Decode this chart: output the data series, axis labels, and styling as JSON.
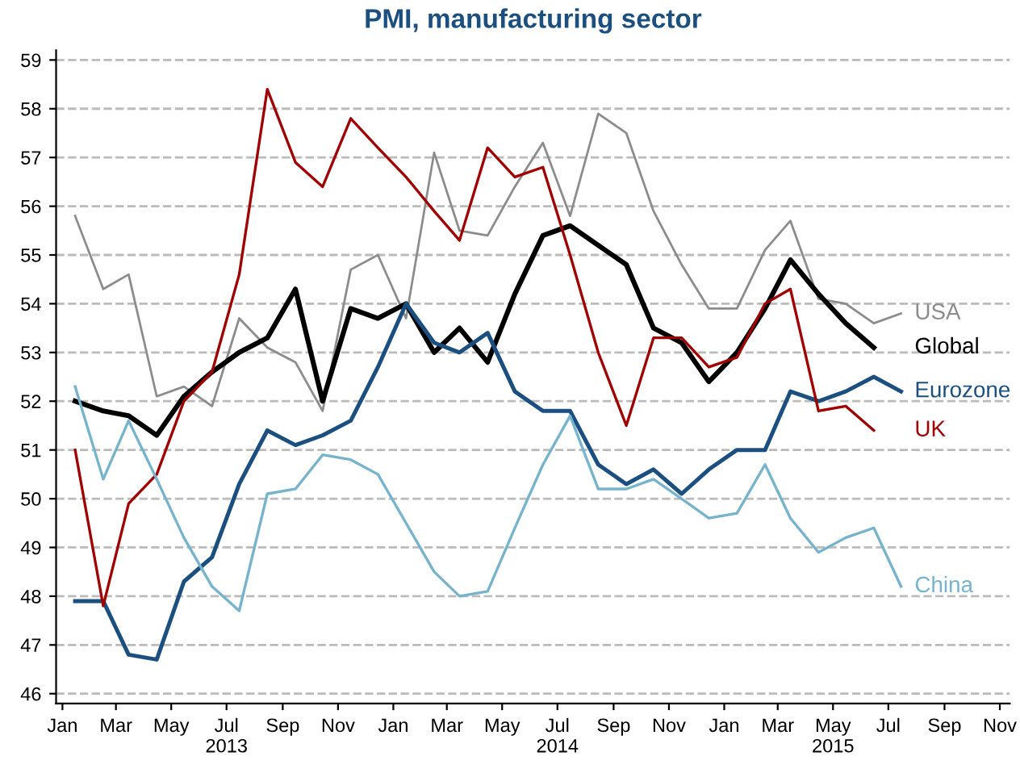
{
  "chart_data": {
    "type": "line",
    "title": "PMI, manufacturing sector",
    "x": [
      "2013-01-15",
      "2013-02-15",
      "2013-03-15",
      "2013-04-15",
      "2013-05-15",
      "2013-06-15",
      "2013-07-15",
      "2013-08-15",
      "2013-09-15",
      "2013-10-15",
      "2013-11-15",
      "2013-12-15",
      "2014-01-15",
      "2014-02-15",
      "2014-03-15",
      "2014-04-15",
      "2014-05-15",
      "2014-06-15",
      "2014-07-15",
      "2014-08-15",
      "2014-09-15",
      "2014-10-15",
      "2014-11-15",
      "2014-12-15",
      "2015-01-15",
      "2015-02-15",
      "2015-03-15",
      "2015-04-15",
      "2015-05-15",
      "2015-06-15",
      "2015-07-15"
    ],
    "series": [
      {
        "name": "USA",
        "color": "#8c8c8c",
        "values": [
          55.8,
          54.3,
          54.6,
          52.1,
          52.3,
          51.9,
          53.7,
          53.1,
          52.8,
          51.8,
          54.7,
          55.0,
          53.7,
          57.1,
          55.5,
          55.4,
          56.4,
          57.3,
          55.8,
          57.9,
          57.5,
          55.9,
          54.8,
          53.9,
          53.9,
          55.1,
          55.7,
          54.1,
          54.0,
          53.6,
          53.8
        ]
      },
      {
        "name": "Global",
        "color": "#000000",
        "values": [
          52.0,
          51.8,
          51.7,
          51.3,
          52.1,
          52.6,
          53.0,
          53.3,
          54.3,
          52.0,
          53.9,
          53.7,
          54.0,
          53.0,
          53.5,
          52.8,
          54.2,
          55.4,
          55.6,
          55.2,
          54.8,
          53.5,
          53.2,
          52.4,
          53.0,
          53.9,
          54.9,
          54.2,
          53.6,
          53.1,
          null
        ]
      },
      {
        "name": "Eurozone",
        "color": "#1b4f7f",
        "values": [
          47.9,
          47.9,
          46.8,
          46.7,
          48.3,
          48.8,
          50.3,
          51.4,
          51.1,
          51.3,
          51.6,
          52.7,
          54.0,
          53.2,
          53.0,
          53.4,
          52.2,
          51.8,
          51.8,
          50.7,
          50.3,
          50.6,
          50.1,
          50.6,
          51.0,
          51.0,
          52.2,
          52.0,
          52.2,
          52.5,
          52.2
        ]
      },
      {
        "name": "UK",
        "color": "#a00000",
        "values": [
          51.0,
          47.8,
          49.9,
          50.5,
          52.0,
          52.6,
          54.6,
          58.4,
          56.9,
          56.4,
          57.8,
          57.2,
          56.6,
          55.9,
          55.3,
          57.2,
          56.6,
          56.8,
          55.0,
          53.0,
          51.5,
          53.3,
          53.3,
          52.7,
          52.9,
          54.0,
          54.3,
          51.8,
          51.9,
          51.4,
          null
        ]
      },
      {
        "name": "China",
        "color": "#76b3cc",
        "values": [
          52.3,
          50.4,
          51.6,
          50.4,
          49.2,
          48.2,
          47.7,
          50.1,
          50.2,
          50.9,
          50.8,
          50.5,
          49.5,
          48.5,
          48.0,
          48.1,
          49.4,
          50.7,
          51.7,
          50.2,
          50.2,
          50.4,
          50.0,
          49.6,
          49.7,
          50.7,
          49.6,
          48.9,
          49.2,
          49.4,
          48.2
        ]
      }
    ],
    "xlim": [
      "2012-12-25",
      "2015-11-12"
    ],
    "xticks": [
      {
        "value": "2013-01-01",
        "label": "Jan"
      },
      {
        "value": "2013-03-01",
        "label": "Mar"
      },
      {
        "value": "2013-05-01",
        "label": "May"
      },
      {
        "value": "2013-07-01",
        "label": "Jul\n2013"
      },
      {
        "value": "2013-09-01",
        "label": "Sep"
      },
      {
        "value": "2013-11-01",
        "label": "Nov"
      },
      {
        "value": "2014-01-01",
        "label": "Jan"
      },
      {
        "value": "2014-03-01",
        "label": "Mar"
      },
      {
        "value": "2014-05-01",
        "label": "May"
      },
      {
        "value": "2014-07-01",
        "label": "Jul\n2014"
      },
      {
        "value": "2014-09-01",
        "label": "Sep"
      },
      {
        "value": "2014-11-01",
        "label": "Nov"
      },
      {
        "value": "2015-01-01",
        "label": "Jan"
      },
      {
        "value": "2015-03-01",
        "label": "Mar"
      },
      {
        "value": "2015-05-01",
        "label": "May\n2015"
      },
      {
        "value": "2015-07-01",
        "label": "Jul"
      },
      {
        "value": "2015-09-01",
        "label": "Sep"
      },
      {
        "value": "2015-11-01",
        "label": "Nov"
      }
    ],
    "ylim": [
      45.8,
      59.2
    ],
    "yticks": [
      46,
      47,
      48,
      49,
      50,
      51,
      52,
      53,
      54,
      55,
      56,
      57,
      58,
      59
    ],
    "grid": "y",
    "legend": false,
    "marker": "none",
    "line_style": "solid"
  }
}
